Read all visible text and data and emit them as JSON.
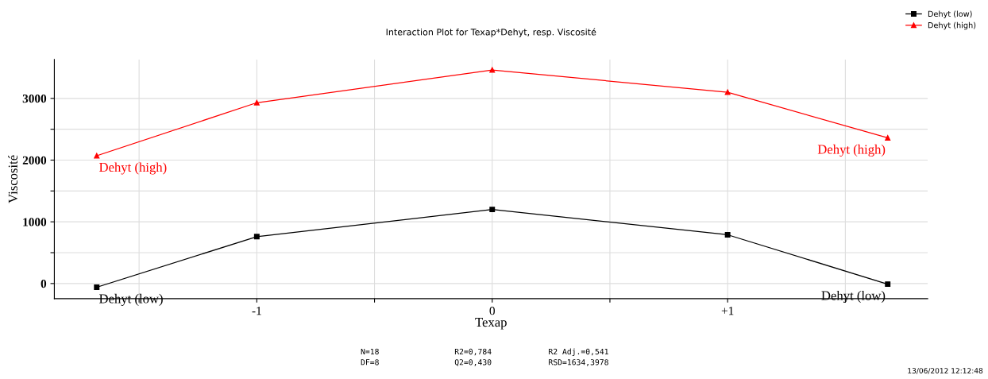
{
  "chart_data": {
    "type": "line",
    "title": "Interaction Plot for Texap*Dehyt, resp. Viscosité",
    "xlabel": "Texap",
    "ylabel": "Viscosité",
    "x": [
      -1.68,
      -1,
      0,
      1,
      1.68
    ],
    "series": [
      {
        "name": "Dehyt (low)",
        "color": "#000000",
        "marker": "square",
        "values": [
          -60,
          760,
          1200,
          790,
          -10
        ]
      },
      {
        "name": "Dehyt (high)",
        "color": "#ff0000",
        "marker": "triangle",
        "values": [
          2070,
          2930,
          3460,
          3100,
          2360
        ]
      }
    ],
    "xlim": [
      -1.86,
      1.85
    ],
    "ylim": [
      -245,
      3630
    ],
    "xticks": [
      {
        "value": -1.5,
        "label": null
      },
      -1,
      {
        "value": -0.5,
        "label": null
      },
      0,
      {
        "value": 0.5,
        "label": null
      },
      {
        "value": 1,
        "label": "+1"
      },
      {
        "value": 1.5,
        "label": null
      }
    ],
    "yticks": [
      0,
      {
        "value": 500,
        "label": null
      },
      1000,
      {
        "value": 1500,
        "label": null
      },
      2000,
      {
        "value": 2500,
        "label": null
      },
      3000
    ],
    "grid": true,
    "legend": "top right",
    "line_style": "solid",
    "annotations": [
      "N=18",
      "R2=0,784",
      "R2 Adj.=0,541",
      "DF=8",
      "Q2=0,430",
      "RSD=1634,3978",
      "13/06/2012 12:12:48"
    ]
  }
}
